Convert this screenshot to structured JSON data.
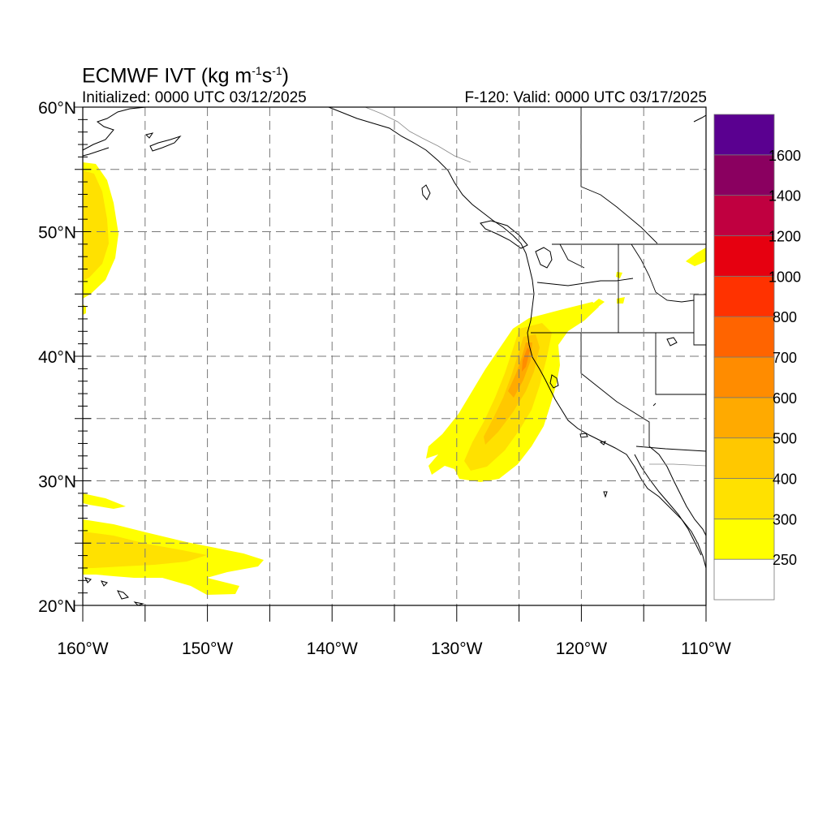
{
  "title": {
    "prefix": "ECMWF IVT (kg m",
    "exp1": "-1",
    "mid": "s",
    "exp2": "-1",
    "suffix": ")"
  },
  "subtitle_left": "Initialized: 0000 UTC 03/12/2025",
  "subtitle_right": "F-120: Valid: 0000 UTC 03/17/2025",
  "map": {
    "lon_range": [
      -160,
      -110
    ],
    "lat_range": [
      20,
      60
    ],
    "grid": true,
    "lon_ticks": [
      {
        "lon": -160,
        "label": "160°W"
      },
      {
        "lon": -150,
        "label": "150°W"
      },
      {
        "lon": -140,
        "label": "140°W"
      },
      {
        "lon": -130,
        "label": "130°W"
      },
      {
        "lon": -120,
        "label": "120°W"
      },
      {
        "lon": -110,
        "label": "110°W"
      }
    ],
    "lat_ticks": [
      {
        "lat": 20,
        "label": "20°N"
      },
      {
        "lat": 30,
        "label": "30°N"
      },
      {
        "lat": 40,
        "label": "40°N"
      },
      {
        "lat": 50,
        "label": "50°N"
      },
      {
        "lat": 60,
        "label": "60°N"
      }
    ]
  },
  "colorbar": {
    "levels": [
      "250",
      "300",
      "400",
      "500",
      "600",
      "700",
      "800",
      "1000",
      "1200",
      "1400",
      "1600"
    ],
    "colors": [
      "#ffffff",
      "#ffff00",
      "#ffe100",
      "#ffc800",
      "#ffaa00",
      "#ff8c00",
      "#ff6400",
      "#ff3200",
      "#e60010",
      "#c00040",
      "#8a0060",
      "#5a0090"
    ]
  }
}
